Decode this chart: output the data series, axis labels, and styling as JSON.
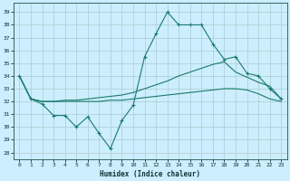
{
  "title": "",
  "xlabel": "Humidex (Indice chaleur)",
  "bg_color": "#cceeff",
  "grid_color": "#aacccc",
  "line_color": "#1a7a6e",
  "xlim": [
    -0.5,
    23.5
  ],
  "ylim": [
    27.5,
    39.7
  ],
  "yticks": [
    28,
    29,
    30,
    31,
    32,
    33,
    34,
    35,
    36,
    37,
    38,
    39
  ],
  "xticks": [
    0,
    1,
    2,
    3,
    4,
    5,
    6,
    7,
    8,
    9,
    10,
    11,
    12,
    13,
    14,
    15,
    16,
    17,
    18,
    19,
    20,
    21,
    22,
    23
  ],
  "line1_x": [
    0,
    1,
    2,
    3,
    4,
    5,
    6,
    7,
    8,
    9,
    10,
    11,
    12,
    13,
    14,
    15,
    16,
    17,
    18,
    19,
    20,
    21,
    22,
    23
  ],
  "line1_y": [
    34.0,
    32.2,
    31.8,
    30.9,
    30.9,
    30.0,
    30.8,
    29.5,
    28.3,
    30.5,
    31.7,
    35.5,
    37.3,
    39.0,
    38.0,
    38.0,
    38.0,
    36.5,
    35.3,
    35.5,
    34.2,
    34.0,
    33.0,
    32.2
  ],
  "line2_x": [
    0,
    1,
    2,
    3,
    4,
    5,
    6,
    7,
    8,
    9,
    10,
    11,
    12,
    13,
    14,
    15,
    16,
    17,
    18,
    19,
    20,
    21,
    22,
    23
  ],
  "line2_y": [
    34.0,
    32.2,
    32.0,
    32.0,
    32.1,
    32.1,
    32.2,
    32.3,
    32.4,
    32.5,
    32.7,
    33.0,
    33.3,
    33.6,
    34.0,
    34.3,
    34.6,
    34.9,
    35.1,
    34.3,
    33.9,
    33.5,
    33.2,
    32.2
  ],
  "line3_x": [
    0,
    1,
    2,
    3,
    4,
    5,
    6,
    7,
    8,
    9,
    10,
    11,
    12,
    13,
    14,
    15,
    16,
    17,
    18,
    19,
    20,
    21,
    22,
    23
  ],
  "line3_y": [
    34.0,
    32.2,
    32.0,
    32.0,
    32.0,
    32.0,
    32.0,
    32.0,
    32.1,
    32.1,
    32.2,
    32.3,
    32.4,
    32.5,
    32.6,
    32.7,
    32.8,
    32.9,
    33.0,
    33.0,
    32.9,
    32.6,
    32.2,
    32.0
  ]
}
